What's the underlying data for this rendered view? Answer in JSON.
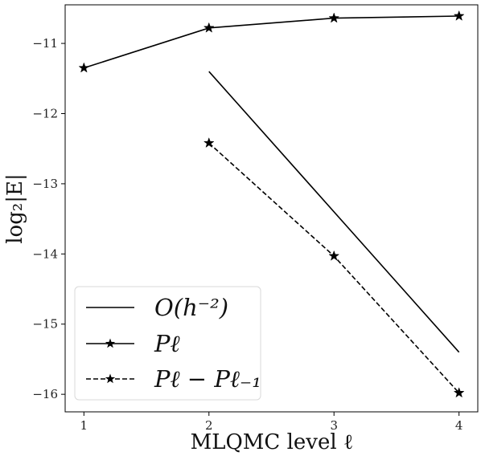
{
  "chart_data": {
    "type": "line",
    "xlabel": "MLQMC level ℓ",
    "ylabel": "log₂|E|",
    "xlim": [
      0.85,
      4.15
    ],
    "ylim": [
      -16.25,
      -10.45
    ],
    "x_ticks": [
      1,
      2,
      3,
      4
    ],
    "y_ticks": [
      -11,
      -12,
      -13,
      -14,
      -15,
      -16
    ],
    "x_tick_labels": [
      "1",
      "2",
      "3",
      "4"
    ],
    "y_tick_labels": [
      "−11",
      "−12",
      "−13",
      "−14",
      "−15",
      "−16"
    ],
    "grid": false,
    "legend_position": "bottom-left",
    "series": [
      {
        "name": "O(h⁻²)",
        "line_style": "solid",
        "marker": "none",
        "color": "#000000",
        "x": [
          2,
          4
        ],
        "y": [
          -11.4,
          -15.4
        ]
      },
      {
        "name": "Pℓ",
        "line_style": "solid",
        "marker": "star",
        "color": "#000000",
        "x": [
          1,
          2,
          3,
          4
        ],
        "y": [
          -11.35,
          -10.78,
          -10.64,
          -10.61
        ]
      },
      {
        "name": "Pℓ − Pℓ₋₁",
        "line_style": "dashed",
        "marker": "star",
        "color": "#000000",
        "x": [
          2,
          3,
          4
        ],
        "y": [
          -12.42,
          -14.03,
          -15.98
        ]
      }
    ]
  }
}
